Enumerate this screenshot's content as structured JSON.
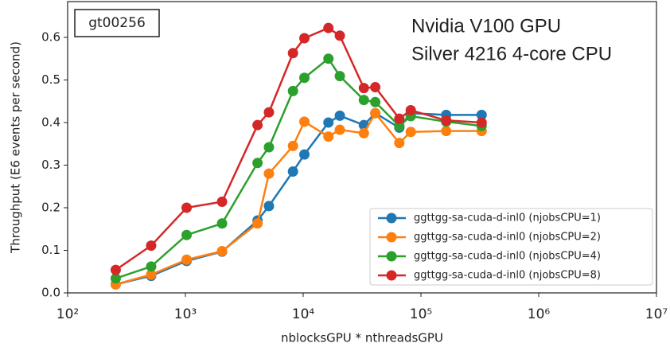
{
  "chart_data": {
    "type": "line",
    "xlabel": "nblocksGPU * nthreadsGPU",
    "ylabel": "Throughput (E6 events per second)",
    "annotations": [
      "gt00256",
      "Nvidia V100 GPU",
      "Silver 4216 4-core CPU"
    ],
    "xscale": "log",
    "x": [
      256,
      512,
      1024,
      2048,
      4096,
      5120,
      8192,
      10240,
      16384,
      20480,
      32768,
      40960,
      65536,
      81920,
      163840,
      327680
    ],
    "series": [
      {
        "name": "ggttgg-sa-cuda-d-inl0 (njobsCPU=1)",
        "color": "#1f77b4",
        "values": [
          0.02,
          0.04,
          0.075,
          0.097,
          0.17,
          0.204,
          0.285,
          0.325,
          0.4,
          0.416,
          0.394,
          0.422,
          0.388,
          0.422,
          0.418,
          0.418
        ]
      },
      {
        "name": "ggttgg-sa-cuda-d-inl0 (njobsCPU=2)",
        "color": "#ff7f0e",
        "values": [
          0.02,
          0.043,
          0.078,
          0.098,
          0.163,
          0.28,
          0.345,
          0.402,
          0.367,
          0.383,
          0.375,
          0.422,
          0.352,
          0.378,
          0.38,
          0.38
        ]
      },
      {
        "name": "ggttgg-sa-cuda-d-inl0 (njobsCPU=4)",
        "color": "#2ca02c",
        "values": [
          0.034,
          0.062,
          0.136,
          0.163,
          0.305,
          0.342,
          0.474,
          0.505,
          0.55,
          0.509,
          0.453,
          0.448,
          0.392,
          0.415,
          0.402,
          0.392
        ]
      },
      {
        "name": "ggttgg-sa-cuda-d-inl0 (njobsCPU=8)",
        "color": "#d62728",
        "values": [
          0.054,
          0.111,
          0.2,
          0.214,
          0.394,
          0.424,
          0.563,
          0.598,
          0.622,
          0.604,
          0.481,
          0.483,
          0.409,
          0.429,
          0.405,
          0.4
        ]
      }
    ],
    "xlim": [
      100,
      10000000
    ],
    "xticks": [
      {
        "value": 100,
        "label": "10²"
      },
      {
        "value": 1000,
        "label": "10³"
      },
      {
        "value": 10000,
        "label": "10⁴"
      },
      {
        "value": 100000,
        "label": "10⁵"
      },
      {
        "value": 1000000,
        "label": "10⁶"
      },
      {
        "value": 10000000,
        "label": "10⁷"
      }
    ],
    "ylim": [
      0,
      0.684
    ],
    "yticks": [
      {
        "value": 0,
        "label": "0.0"
      },
      0.1,
      0.2,
      0.3,
      0.4,
      0.5,
      0.6
    ],
    "legend": "lower right",
    "grid": false
  }
}
